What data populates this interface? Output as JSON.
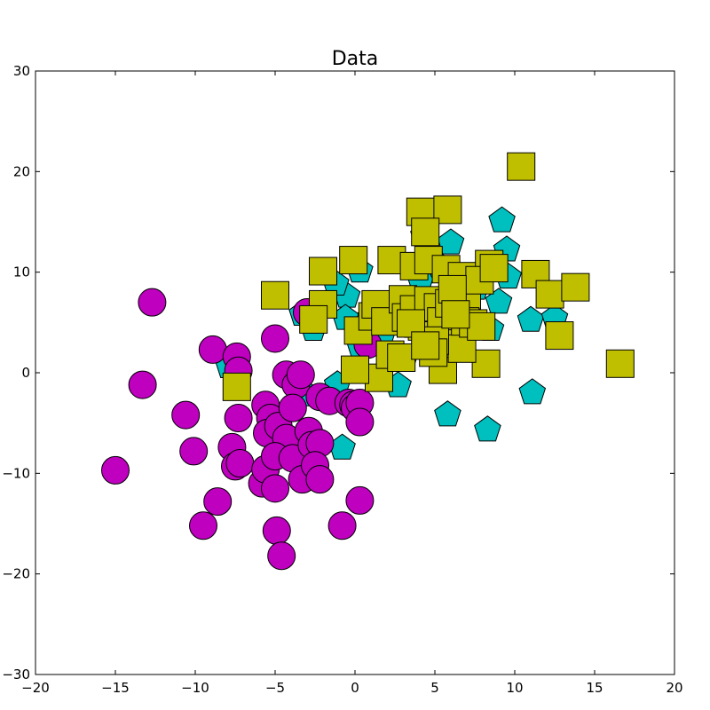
{
  "chart_data": {
    "type": "scatter",
    "title": "Data",
    "xlabel": "",
    "ylabel": "",
    "xlim": [
      -20,
      20
    ],
    "ylim": [
      -30,
      30
    ],
    "xticks": [
      -20,
      -15,
      -10,
      -5,
      0,
      5,
      10,
      15,
      20
    ],
    "yticks": [
      -30,
      -20,
      -10,
      0,
      10,
      20,
      30
    ],
    "xtick_labels": [
      "−20",
      "−15",
      "−10",
      "−5",
      "0",
      "5",
      "10",
      "15",
      "20"
    ],
    "ytick_labels": [
      "−30",
      "−20",
      "−10",
      "0",
      "10",
      "20",
      "30"
    ],
    "grid": false,
    "series": [
      {
        "marker": "pentagon",
        "color": "#00bfbf",
        "points": [
          [
            9.2,
            15.3
          ],
          [
            9.5,
            12.4
          ],
          [
            6,
            13.1
          ],
          [
            4.3,
            13.8
          ],
          [
            9.6,
            9.7
          ],
          [
            11,
            5.4
          ],
          [
            12.5,
            5.6
          ],
          [
            9,
            7.2
          ],
          [
            8.5,
            4.5
          ],
          [
            11.1,
            -1.8
          ],
          [
            5.8,
            -4
          ],
          [
            8.3,
            -5.5
          ],
          [
            -0.8,
            -7.3
          ],
          [
            -7.9,
            0.8
          ],
          [
            -3.3,
            6
          ],
          [
            -2.6,
            4.5
          ],
          [
            -0.5,
            7.8
          ],
          [
            0.3,
            10.3
          ],
          [
            -1.2,
            9
          ],
          [
            -0.6,
            5.6
          ],
          [
            1.3,
            3.1
          ],
          [
            2.7,
            -1.1
          ],
          [
            -1.1,
            -1
          ],
          [
            -3,
            -2
          ],
          [
            1,
            5.7
          ],
          [
            1.8,
            4.3
          ],
          [
            3.6,
            4.8
          ],
          [
            4.1,
            9.3
          ],
          [
            5.3,
            10.8
          ],
          [
            6.7,
            6.1
          ],
          [
            6.1,
            4.8
          ],
          [
            7.6,
            8.6
          ],
          [
            2.7,
            6.8
          ],
          [
            2.4,
            5.9
          ],
          [
            4.9,
            3.5
          ],
          [
            3.1,
            1.5
          ],
          [
            0.3,
            2.8
          ],
          [
            6.7,
            2.5
          ],
          [
            7.3,
            9.4
          ]
        ]
      },
      {
        "marker": "circle",
        "color": "#bf00bf",
        "points": [
          [
            -12.7,
            7
          ],
          [
            -13.3,
            -1.2
          ],
          [
            -15,
            -9.7
          ],
          [
            -10.6,
            -4.2
          ],
          [
            -10.1,
            -7.8
          ],
          [
            -9.5,
            -15.2
          ],
          [
            -8.6,
            -12.8
          ],
          [
            -8.9,
            2.3
          ],
          [
            -7.4,
            1.6
          ],
          [
            -7.3,
            0.2
          ],
          [
            -7.3,
            -4.5
          ],
          [
            -7.7,
            -7.4
          ],
          [
            -7.5,
            -9.3
          ],
          [
            -7.2,
            -9
          ],
          [
            -5,
            3.4
          ],
          [
            -5.6,
            -3.2
          ],
          [
            -5.3,
            -4.5
          ],
          [
            -5.5,
            -6
          ],
          [
            -4.8,
            -5.3
          ],
          [
            -4.3,
            -6.5
          ],
          [
            -4.3,
            -0.2
          ],
          [
            -3.7,
            -1.2
          ],
          [
            -3.9,
            -3.5
          ],
          [
            -5.8,
            -11
          ],
          [
            -5.6,
            -9.6
          ],
          [
            -5,
            -8.3
          ],
          [
            -5,
            -11.5
          ],
          [
            -4.9,
            -15.7
          ],
          [
            -4.6,
            -18.2
          ],
          [
            -3.9,
            -8.5
          ],
          [
            -3.3,
            -10.6
          ],
          [
            -3.4,
            -0.2
          ],
          [
            -2.9,
            -5.8
          ],
          [
            -2.7,
            -7.2
          ],
          [
            -2.2,
            -7
          ],
          [
            -2.5,
            -9.2
          ],
          [
            -2.2,
            -10.6
          ],
          [
            -2.2,
            -2.4
          ],
          [
            -1.6,
            -2.8
          ],
          [
            -0.8,
            -15.2
          ],
          [
            -0.4,
            -3
          ],
          [
            -0.1,
            -3.2
          ],
          [
            0,
            -3.5
          ],
          [
            0.3,
            -3
          ],
          [
            0.3,
            -4.9
          ],
          [
            0.3,
            -12.7
          ],
          [
            -3,
            6
          ],
          [
            0.8,
            2.8
          ]
        ]
      },
      {
        "marker": "square",
        "color": "#bfbf00",
        "points": [
          [
            10.4,
            20.5
          ],
          [
            4.1,
            16
          ],
          [
            5.8,
            16.2
          ],
          [
            4.4,
            14
          ],
          [
            -0.1,
            11.2
          ],
          [
            -2,
            10.1
          ],
          [
            2.3,
            11.2
          ],
          [
            3.7,
            10.6
          ],
          [
            4.6,
            11.2
          ],
          [
            5.7,
            10.3
          ],
          [
            6.7,
            9.6
          ],
          [
            8.4,
            10.8
          ],
          [
            11.3,
            9.8
          ],
          [
            12.2,
            7.8
          ],
          [
            13.8,
            8.5
          ],
          [
            12.8,
            3.7
          ],
          [
            16.6,
            0.9
          ],
          [
            8.2,
            0.9
          ],
          [
            5.5,
            0.3
          ],
          [
            1.5,
            -0.5
          ],
          [
            0,
            0.3
          ],
          [
            -7.4,
            -1.4
          ],
          [
            -5,
            7.7
          ],
          [
            -2,
            6.8
          ],
          [
            -2.6,
            5.3
          ],
          [
            0.2,
            4.2
          ],
          [
            1.1,
            5.6
          ],
          [
            1.3,
            6.8
          ],
          [
            1.9,
            5.1
          ],
          [
            2.2,
            1.8
          ],
          [
            3,
            7.3
          ],
          [
            3.2,
            5.5
          ],
          [
            3.7,
            6.3
          ],
          [
            4.2,
            4.6
          ],
          [
            4.6,
            7.2
          ],
          [
            4.5,
            3.7
          ],
          [
            5.2,
            6.5
          ],
          [
            5.4,
            5.1
          ],
          [
            5.9,
            6.9
          ],
          [
            5.5,
            2.9
          ],
          [
            6.7,
            2.4
          ],
          [
            7,
            7.7
          ],
          [
            6.9,
            5.1
          ],
          [
            7.4,
            4.9
          ],
          [
            7.8,
            9.2
          ],
          [
            7.9,
            4.6
          ],
          [
            5,
            3.2
          ],
          [
            4.9,
            2
          ],
          [
            6.1,
            8.3
          ],
          [
            3.5,
            4.9
          ],
          [
            2.9,
            1.5
          ],
          [
            4.4,
            2.7
          ],
          [
            6.3,
            5.8
          ],
          [
            8.7,
            10.4
          ]
        ]
      }
    ]
  }
}
